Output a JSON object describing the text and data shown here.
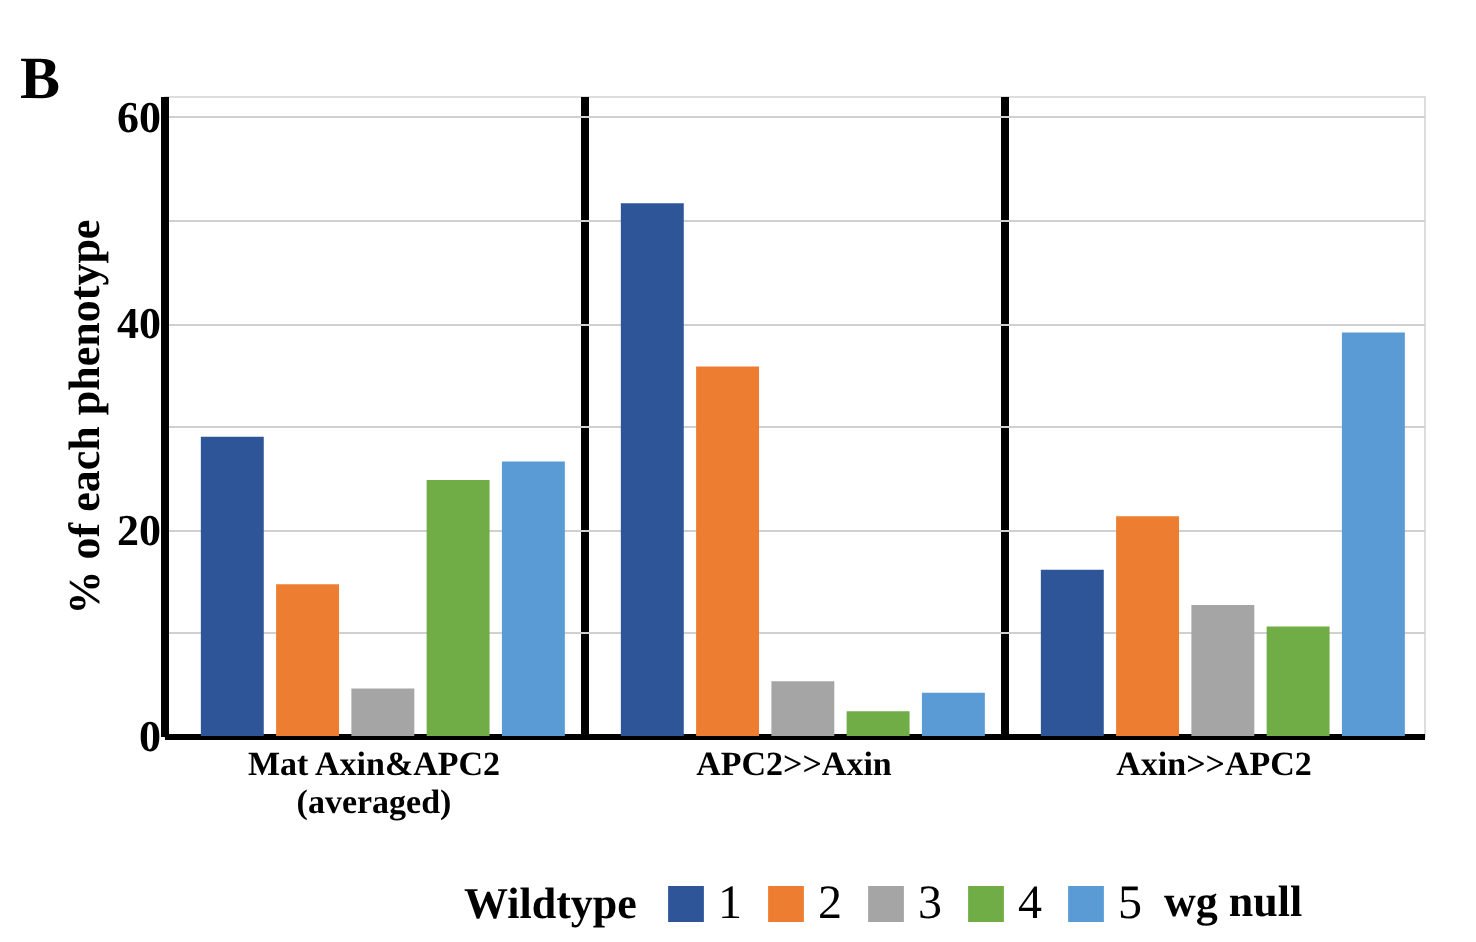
{
  "chart_data": {
    "type": "bar",
    "categories": [
      "Mat Axin&APC2\n(averaged)",
      "APC2>>Axin",
      "Axin>>APC2"
    ],
    "ylabel": "% of each phenotype",
    "legend_title": "Wildtype",
    "annotations": [
      "B",
      "wg null"
    ],
    "series": [
      {
        "name": "1",
        "color": "#2e5597",
        "values": [
          29.0,
          51.6,
          16.1
        ]
      },
      {
        "name": "2",
        "color": "#ed7d31",
        "values": [
          14.7,
          35.8,
          21.3
        ]
      },
      {
        "name": "3",
        "color": "#a5a5a5",
        "values": [
          4.6,
          5.3,
          12.7
        ]
      },
      {
        "name": "4",
        "color": "#70ad47",
        "values": [
          24.8,
          2.4,
          10.6
        ]
      },
      {
        "name": "5",
        "color": "#5b9bd5",
        "values": [
          26.6,
          4.2,
          39.1
        ]
      }
    ],
    "ylim": [
      0,
      62
    ],
    "yticks": [
      0,
      {
        "value": 10,
        "label": null
      },
      20,
      {
        "value": 30,
        "label": null
      },
      40,
      {
        "value": 50,
        "label": null
      },
      60
    ],
    "grid": true,
    "legend": "bottom"
  }
}
